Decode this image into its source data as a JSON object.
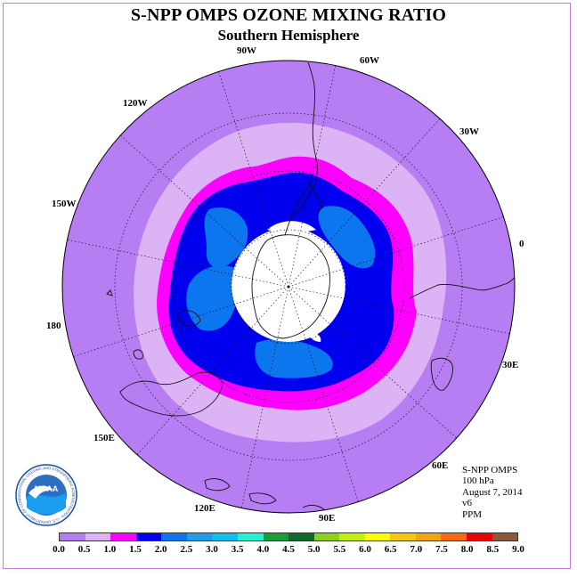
{
  "title": "S-NPP OMPS OZONE MIXING RATIO",
  "subtitle": "Southern Hemisphere",
  "logo_text": "NOAA",
  "logo_ring_text": "NATIONAL OCEANIC AND ATMOSPHERIC ADMINISTRATION · U.S. DEPARTMENT OF COMMERCE",
  "longitude_labels": {
    "w90": "90W",
    "w60": "60W",
    "w30": "30W",
    "e0": "0",
    "w120": "120W",
    "w150": "150W",
    "lon180": "180",
    "e30": "30E",
    "e60": "60E",
    "e90": "90E",
    "e120": "120E",
    "e150": "150E"
  },
  "info": {
    "instrument": "S-NPP OMPS",
    "level": "100 hPa",
    "date": "August 7, 2014",
    "version": "v6",
    "units": "PPM"
  },
  "colorbar": {
    "colors": [
      "#b77df2",
      "#dcb3f5",
      "#ff00ff",
      "#0000ee",
      "#0b76ee",
      "#1a9ff0",
      "#13bcee",
      "#25f2d2",
      "#179e3b",
      "#0c6b2b",
      "#8bd318",
      "#c5f00f",
      "#ffff00",
      "#f5c80f",
      "#f5a40f",
      "#f56c0f",
      "#ee0000",
      "#8a5a3a"
    ],
    "ticks": [
      "0.0",
      "0.5",
      "1.0",
      "1.5",
      "2.0",
      "2.5",
      "3.0",
      "3.5",
      "4.0",
      "4.5",
      "5.0",
      "5.5",
      "6.0",
      "6.5",
      "7.0",
      "7.5",
      "8.0",
      "8.5",
      "9.0"
    ]
  }
}
